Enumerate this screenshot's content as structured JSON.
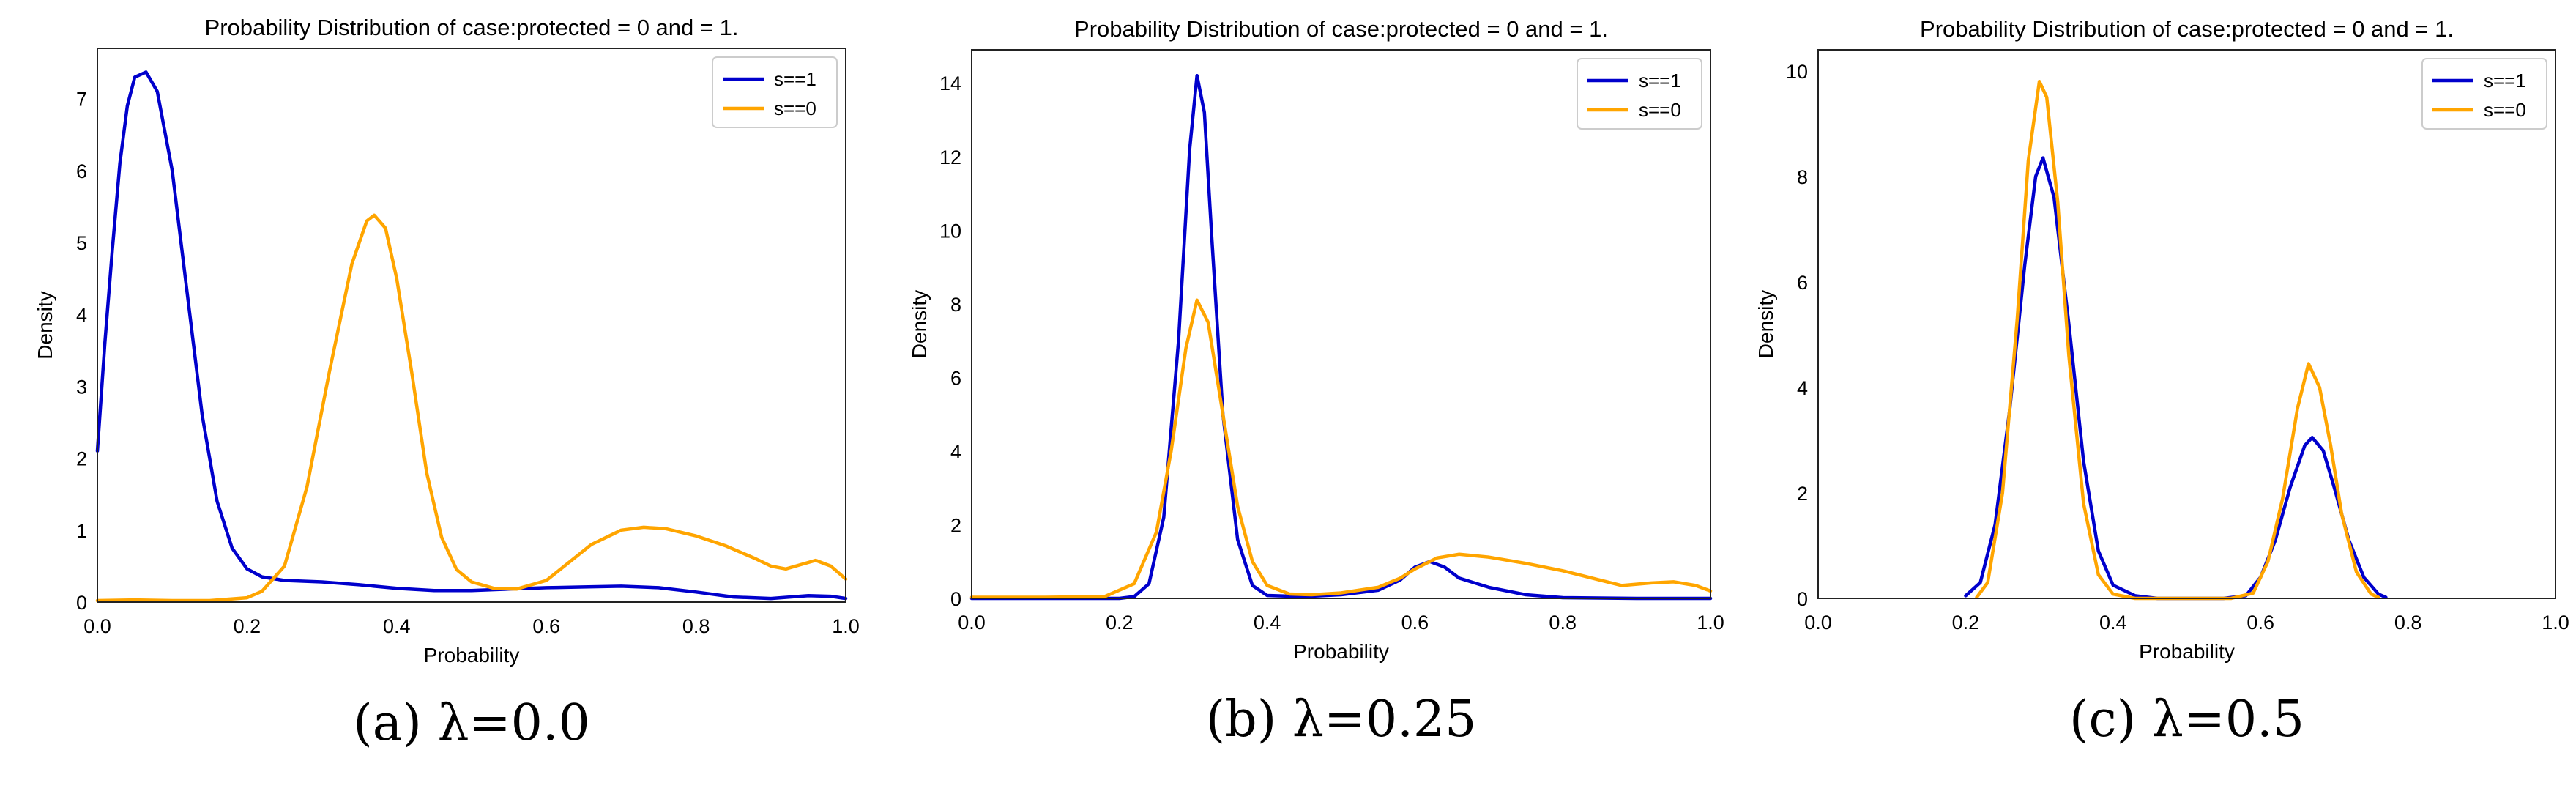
{
  "chart_data": [
    {
      "type": "line",
      "title": "Probability Distribution of case:protected = 0 and = 1.",
      "xlabel": "Probability",
      "ylabel": "Density",
      "xlim": [
        0.0,
        1.0
      ],
      "ylim": [
        0,
        7.7
      ],
      "x_ticks": [
        "0.0",
        "0.2",
        "0.4",
        "0.6",
        "0.8",
        "1.0"
      ],
      "y_ticks": [
        "0",
        "1",
        "2",
        "3",
        "4",
        "5",
        "6",
        "7"
      ],
      "grid": false,
      "legend": "top-right",
      "caption": "(a) λ=0.0",
      "series": [
        {
          "name": "s==1",
          "color": "#0000cc",
          "points": [
            [
              0.0,
              2.1
            ],
            [
              0.01,
              3.6
            ],
            [
              0.02,
              4.9
            ],
            [
              0.03,
              6.1
            ],
            [
              0.04,
              6.9
            ],
            [
              0.05,
              7.3
            ],
            [
              0.065,
              7.37
            ],
            [
              0.08,
              7.1
            ],
            [
              0.1,
              6.0
            ],
            [
              0.12,
              4.3
            ],
            [
              0.14,
              2.6
            ],
            [
              0.16,
              1.4
            ],
            [
              0.18,
              0.75
            ],
            [
              0.2,
              0.46
            ],
            [
              0.22,
              0.35
            ],
            [
              0.25,
              0.3
            ],
            [
              0.3,
              0.28
            ],
            [
              0.35,
              0.24
            ],
            [
              0.4,
              0.19
            ],
            [
              0.45,
              0.16
            ],
            [
              0.5,
              0.16
            ],
            [
              0.55,
              0.18
            ],
            [
              0.6,
              0.2
            ],
            [
              0.65,
              0.21
            ],
            [
              0.7,
              0.22
            ],
            [
              0.75,
              0.2
            ],
            [
              0.8,
              0.14
            ],
            [
              0.85,
              0.07
            ],
            [
              0.9,
              0.05
            ],
            [
              0.95,
              0.09
            ],
            [
              0.98,
              0.08
            ],
            [
              1.0,
              0.05
            ]
          ]
        },
        {
          "name": "s==0",
          "color": "#ffa500",
          "points": [
            [
              0.0,
              0.02
            ],
            [
              0.05,
              0.03
            ],
            [
              0.1,
              0.02
            ],
            [
              0.15,
              0.02
            ],
            [
              0.2,
              0.06
            ],
            [
              0.22,
              0.15
            ],
            [
              0.25,
              0.5
            ],
            [
              0.28,
              1.6
            ],
            [
              0.31,
              3.2
            ],
            [
              0.34,
              4.7
            ],
            [
              0.36,
              5.3
            ],
            [
              0.37,
              5.38
            ],
            [
              0.385,
              5.2
            ],
            [
              0.4,
              4.5
            ],
            [
              0.42,
              3.2
            ],
            [
              0.44,
              1.8
            ],
            [
              0.46,
              0.9
            ],
            [
              0.48,
              0.45
            ],
            [
              0.5,
              0.28
            ],
            [
              0.53,
              0.19
            ],
            [
              0.56,
              0.18
            ],
            [
              0.6,
              0.3
            ],
            [
              0.63,
              0.55
            ],
            [
              0.66,
              0.8
            ],
            [
              0.7,
              1.0
            ],
            [
              0.73,
              1.04
            ],
            [
              0.76,
              1.02
            ],
            [
              0.8,
              0.92
            ],
            [
              0.84,
              0.78
            ],
            [
              0.88,
              0.6
            ],
            [
              0.9,
              0.5
            ],
            [
              0.92,
              0.46
            ],
            [
              0.94,
              0.52
            ],
            [
              0.96,
              0.58
            ],
            [
              0.98,
              0.5
            ],
            [
              1.0,
              0.32
            ]
          ]
        }
      ]
    },
    {
      "type": "line",
      "title": "Probability Distribution of case:protected = 0 and = 1.",
      "xlabel": "Probability",
      "ylabel": "Density",
      "xlim": [
        0.0,
        1.0
      ],
      "ylim": [
        0,
        14.9
      ],
      "x_ticks": [
        "0.0",
        "0.2",
        "0.4",
        "0.6",
        "0.8",
        "1.0"
      ],
      "y_ticks": [
        "0",
        "2",
        "4",
        "6",
        "8",
        "10",
        "12",
        "14"
      ],
      "grid": false,
      "legend": "top-right",
      "caption": "(b) λ=0.25",
      "series": [
        {
          "name": "s==1",
          "color": "#0000cc",
          "points": [
            [
              0.0,
              0.0
            ],
            [
              0.1,
              0.0
            ],
            [
              0.2,
              0.0
            ],
            [
              0.22,
              0.05
            ],
            [
              0.24,
              0.4
            ],
            [
              0.26,
              2.2
            ],
            [
              0.28,
              7.0
            ],
            [
              0.295,
              12.2
            ],
            [
              0.305,
              14.2
            ],
            [
              0.315,
              13.2
            ],
            [
              0.325,
              9.8
            ],
            [
              0.34,
              5.0
            ],
            [
              0.36,
              1.6
            ],
            [
              0.38,
              0.35
            ],
            [
              0.4,
              0.08
            ],
            [
              0.45,
              0.05
            ],
            [
              0.5,
              0.1
            ],
            [
              0.55,
              0.22
            ],
            [
              0.58,
              0.5
            ],
            [
              0.6,
              0.85
            ],
            [
              0.62,
              1.0
            ],
            [
              0.64,
              0.85
            ],
            [
              0.66,
              0.55
            ],
            [
              0.7,
              0.3
            ],
            [
              0.75,
              0.1
            ],
            [
              0.8,
              0.02
            ],
            [
              0.9,
              0.0
            ],
            [
              1.0,
              0.0
            ]
          ]
        },
        {
          "name": "s==0",
          "color": "#ffa500",
          "points": [
            [
              0.0,
              0.03
            ],
            [
              0.1,
              0.03
            ],
            [
              0.18,
              0.05
            ],
            [
              0.22,
              0.4
            ],
            [
              0.25,
              1.8
            ],
            [
              0.27,
              4.0
            ],
            [
              0.29,
              6.8
            ],
            [
              0.305,
              8.1
            ],
            [
              0.32,
              7.5
            ],
            [
              0.34,
              5.0
            ],
            [
              0.36,
              2.5
            ],
            [
              0.38,
              1.0
            ],
            [
              0.4,
              0.35
            ],
            [
              0.43,
              0.12
            ],
            [
              0.46,
              0.1
            ],
            [
              0.5,
              0.15
            ],
            [
              0.55,
              0.3
            ],
            [
              0.58,
              0.55
            ],
            [
              0.6,
              0.8
            ],
            [
              0.63,
              1.1
            ],
            [
              0.66,
              1.2
            ],
            [
              0.7,
              1.12
            ],
            [
              0.75,
              0.95
            ],
            [
              0.8,
              0.75
            ],
            [
              0.85,
              0.5
            ],
            [
              0.88,
              0.35
            ],
            [
              0.92,
              0.42
            ],
            [
              0.95,
              0.45
            ],
            [
              0.98,
              0.35
            ],
            [
              1.0,
              0.2
            ]
          ]
        }
      ]
    },
    {
      "type": "line",
      "title": "Probability Distribution of case:protected = 0 and = 1.",
      "xlabel": "Probability",
      "ylabel": "Density",
      "xlim": [
        0.0,
        1.0
      ],
      "ylim": [
        0,
        10.4
      ],
      "x_ticks": [
        "0.0",
        "0.2",
        "0.4",
        "0.6",
        "0.8",
        "1.0"
      ],
      "y_ticks": [
        "0",
        "2",
        "4",
        "6",
        "8",
        "10"
      ],
      "grid": false,
      "legend": "top-right",
      "caption": "(c) λ=0.5",
      "series": [
        {
          "name": "s==1",
          "color": "#0000cc",
          "points": [
            [
              0.2,
              0.05
            ],
            [
              0.22,
              0.3
            ],
            [
              0.24,
              1.4
            ],
            [
              0.26,
              3.6
            ],
            [
              0.28,
              6.3
            ],
            [
              0.295,
              8.0
            ],
            [
              0.305,
              8.35
            ],
            [
              0.32,
              7.6
            ],
            [
              0.34,
              5.2
            ],
            [
              0.36,
              2.6
            ],
            [
              0.38,
              0.9
            ],
            [
              0.4,
              0.25
            ],
            [
              0.43,
              0.05
            ],
            [
              0.46,
              0.0
            ],
            [
              0.55,
              0.0
            ],
            [
              0.58,
              0.05
            ],
            [
              0.6,
              0.4
            ],
            [
              0.62,
              1.1
            ],
            [
              0.64,
              2.1
            ],
            [
              0.66,
              2.9
            ],
            [
              0.67,
              3.05
            ],
            [
              0.685,
              2.8
            ],
            [
              0.7,
              2.1
            ],
            [
              0.72,
              1.1
            ],
            [
              0.74,
              0.4
            ],
            [
              0.76,
              0.08
            ],
            [
              0.77,
              0.02
            ]
          ]
        },
        {
          "name": "s==0",
          "color": "#ffa500",
          "points": [
            [
              0.215,
              0.02
            ],
            [
              0.23,
              0.3
            ],
            [
              0.25,
              2.0
            ],
            [
              0.27,
              5.3
            ],
            [
              0.285,
              8.3
            ],
            [
              0.3,
              9.8
            ],
            [
              0.31,
              9.5
            ],
            [
              0.325,
              7.5
            ],
            [
              0.34,
              4.6
            ],
            [
              0.36,
              1.8
            ],
            [
              0.38,
              0.45
            ],
            [
              0.4,
              0.08
            ],
            [
              0.43,
              0.0
            ],
            [
              0.56,
              0.0
            ],
            [
              0.59,
              0.1
            ],
            [
              0.61,
              0.7
            ],
            [
              0.63,
              1.9
            ],
            [
              0.65,
              3.6
            ],
            [
              0.665,
              4.45
            ],
            [
              0.68,
              4.0
            ],
            [
              0.695,
              2.9
            ],
            [
              0.71,
              1.6
            ],
            [
              0.73,
              0.5
            ],
            [
              0.75,
              0.08
            ],
            [
              0.76,
              0.02
            ]
          ]
        }
      ]
    }
  ]
}
